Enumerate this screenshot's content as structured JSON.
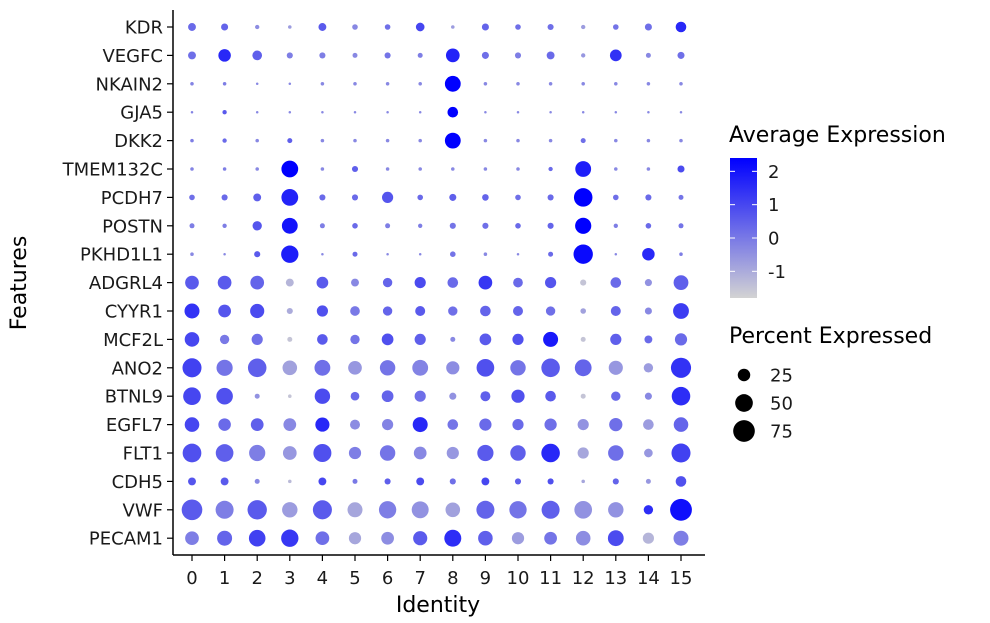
{
  "chart_data": {
    "type": "dotplot",
    "xlabel": "Identity",
    "ylabel": "Features",
    "categories": [
      "0",
      "1",
      "2",
      "3",
      "4",
      "5",
      "6",
      "7",
      "8",
      "9",
      "10",
      "11",
      "12",
      "13",
      "14",
      "15"
    ],
    "features": [
      "KDR",
      "VEGFC",
      "NKAIN2",
      "GJA5",
      "DKK2",
      "TMEM132C",
      "PCDH7",
      "POSTN",
      "PKHD1L1",
      "ADGRL4",
      "CYYR1",
      "MCF2L",
      "ANO2",
      "BTNL9",
      "EGFL7",
      "FLT1",
      "CDH5",
      "VWF",
      "PECAM1"
    ],
    "color_legend": {
      "title": "Average Expression",
      "ticks": [
        2,
        1,
        0,
        -1
      ],
      "range": [
        -1.8,
        2.4
      ],
      "low_color": "#d3d3d3",
      "high_color": "#0000ff"
    },
    "size_legend": {
      "title": "Percent Expressed",
      "values": [
        25,
        50,
        75
      ]
    },
    "average_expression": [
      [
        0.3,
        0.4,
        -0.4,
        -0.7,
        0.6,
        -0.3,
        0.2,
        1.0,
        -0.7,
        0.4,
        0.2,
        0.2,
        -0.7,
        0.1,
        0.2,
        1.6
      ],
      [
        0.2,
        1.6,
        0.5,
        -0.1,
        -0.1,
        -0.3,
        0.1,
        -0.1,
        1.7,
        0.2,
        -0.1,
        0.3,
        -0.6,
        1.4,
        -0.3,
        0.2
      ],
      [
        -0.2,
        -0.1,
        -0.3,
        -0.3,
        -0.3,
        -0.3,
        -0.3,
        -0.3,
        2.4,
        -0.3,
        -0.3,
        -0.3,
        -0.3,
        -0.3,
        -0.3,
        -0.3
      ],
      [
        -0.2,
        0.6,
        -0.3,
        -0.3,
        -0.3,
        -0.3,
        -0.3,
        -0.3,
        2.4,
        -0.3,
        -0.3,
        -0.3,
        -0.3,
        -0.3,
        -0.3,
        -0.3
      ],
      [
        -0.1,
        0.3,
        -0.3,
        0.5,
        -0.3,
        -0.3,
        -0.3,
        -0.3,
        2.4,
        -0.3,
        -0.3,
        -0.3,
        0.2,
        -0.3,
        -0.3,
        -0.3
      ],
      [
        -0.2,
        -0.1,
        -0.3,
        2.4,
        -0.3,
        0.5,
        -0.3,
        -0.3,
        -0.3,
        -0.3,
        -0.3,
        0.3,
        1.8,
        -0.3,
        -0.3,
        0.9
      ],
      [
        0.2,
        0.3,
        0.5,
        1.7,
        0.3,
        0.3,
        0.7,
        0.3,
        0.5,
        0.4,
        0.2,
        0.3,
        2.4,
        0.2,
        0.3,
        0.1
      ],
      [
        -0.1,
        -0.1,
        0.7,
        2.0,
        -0.1,
        0.3,
        -0.1,
        -0.1,
        0.1,
        0.2,
        0.3,
        0.4,
        2.4,
        -0.1,
        0.3,
        0.1
      ],
      [
        -0.3,
        -0.3,
        0.6,
        1.8,
        -0.3,
        0.3,
        -0.3,
        -0.3,
        0.1,
        -0.3,
        -0.3,
        0.3,
        2.2,
        -0.3,
        1.6,
        -0.1
      ],
      [
        0.6,
        0.6,
        0.4,
        -1.2,
        0.6,
        -0.3,
        0.4,
        0.9,
        0.3,
        1.3,
        0.3,
        0.7,
        -1.5,
        0.3,
        -0.5,
        0.5
      ],
      [
        1.4,
        0.7,
        0.9,
        -1.0,
        0.8,
        0.0,
        0.4,
        0.6,
        0.2,
        0.4,
        0.4,
        0.2,
        -0.8,
        0.4,
        -0.3,
        1.2
      ],
      [
        1.0,
        0.0,
        0.2,
        -1.5,
        0.6,
        0.1,
        0.8,
        0.5,
        -0.3,
        0.6,
        0.8,
        1.9,
        -1.5,
        0.5,
        0.3,
        0.3
      ],
      [
        1.1,
        0.1,
        0.5,
        -0.8,
        0.2,
        -0.6,
        0.1,
        -0.2,
        -0.4,
        0.8,
        0.1,
        0.6,
        0.4,
        -0.6,
        -0.7,
        1.4
      ],
      [
        1.0,
        0.8,
        -0.5,
        -1.5,
        0.9,
        0.3,
        0.4,
        0.2,
        -0.5,
        0.5,
        0.8,
        0.6,
        -1.5,
        0.3,
        -0.3,
        1.5
      ],
      [
        1.0,
        0.3,
        0.5,
        -0.3,
        1.6,
        -0.4,
        -0.2,
        1.6,
        0.1,
        0.3,
        0.3,
        0.2,
        -0.5,
        0.2,
        -0.7,
        0.4
      ],
      [
        0.8,
        0.5,
        -0.1,
        -0.6,
        0.8,
        -0.1,
        0.1,
        -0.3,
        -0.6,
        0.6,
        0.5,
        1.6,
        -0.9,
        0.2,
        -0.6,
        1.1
      ],
      [
        0.7,
        0.6,
        -0.3,
        -1.3,
        1.0,
        0.0,
        0.5,
        0.9,
        0.2,
        1.0,
        0.5,
        0.8,
        -0.9,
        0.4,
        -0.6,
        0.8
      ],
      [
        0.6,
        -0.1,
        0.6,
        -0.7,
        0.6,
        -0.9,
        -0.1,
        -0.5,
        -0.8,
        0.4,
        0.1,
        0.5,
        -0.5,
        -0.5,
        1.5,
        2.1
      ],
      [
        -0.1,
        0.4,
        1.1,
        1.3,
        0.2,
        -0.9,
        -0.4,
        0.6,
        1.5,
        0.5,
        -0.7,
        0.1,
        -0.4,
        0.9,
        -1.2,
        -0.1
      ]
    ],
    "percent_expressed": [
      [
        10,
        8,
        3,
        2,
        10,
        5,
        5,
        12,
        2,
        8,
        5,
        6,
        3,
        5,
        8,
        18
      ],
      [
        10,
        25,
        15,
        6,
        6,
        4,
        6,
        4,
        30,
        8,
        6,
        10,
        3,
        22,
        4,
        8
      ],
      [
        2,
        2,
        1,
        1,
        2,
        2,
        2,
        2,
        40,
        2,
        2,
        2,
        2,
        2,
        2,
        2
      ],
      [
        1,
        3,
        1,
        1,
        1,
        1,
        1,
        1,
        18,
        1,
        1,
        1,
        1,
        1,
        1,
        1
      ],
      [
        2,
        3,
        2,
        4,
        2,
        2,
        2,
        2,
        40,
        2,
        2,
        2,
        4,
        2,
        2,
        2
      ],
      [
        2,
        2,
        2,
        45,
        2,
        6,
        2,
        2,
        2,
        2,
        2,
        3,
        40,
        2,
        2,
        8
      ],
      [
        5,
        6,
        10,
        45,
        6,
        6,
        20,
        5,
        8,
        7,
        5,
        6,
        55,
        5,
        6,
        4
      ],
      [
        4,
        3,
        14,
        40,
        4,
        5,
        4,
        3,
        6,
        6,
        5,
        6,
        42,
        3,
        5,
        4
      ],
      [
        2,
        1,
        6,
        48,
        1,
        4,
        1,
        1,
        5,
        2,
        1,
        4,
        60,
        1,
        25,
        2
      ],
      [
        30,
        30,
        30,
        10,
        22,
        10,
        14,
        20,
        18,
        30,
        15,
        20,
        6,
        18,
        8,
        35
      ],
      [
        36,
        26,
        32,
        6,
        20,
        15,
        14,
        16,
        14,
        18,
        16,
        14,
        5,
        16,
        8,
        40
      ],
      [
        34,
        14,
        20,
        4,
        18,
        14,
        22,
        20,
        4,
        22,
        20,
        36,
        4,
        20,
        10,
        24
      ],
      [
        58,
        42,
        55,
        34,
        40,
        30,
        38,
        40,
        28,
        50,
        38,
        55,
        45,
        32,
        14,
        65
      ],
      [
        50,
        44,
        4,
        2,
        38,
        12,
        22,
        20,
        8,
        16,
        28,
        18,
        4,
        14,
        8,
        55
      ],
      [
        34,
        25,
        26,
        26,
        32,
        16,
        20,
        36,
        18,
        24,
        20,
        24,
        20,
        28,
        18,
        34
      ],
      [
        56,
        50,
        42,
        30,
        52,
        24,
        38,
        26,
        24,
        42,
        38,
        55,
        20,
        38,
        12,
        58
      ],
      [
        10,
        10,
        4,
        2,
        10,
        4,
        6,
        10,
        6,
        10,
        6,
        6,
        2,
        6,
        4,
        18
      ],
      [
        68,
        52,
        60,
        38,
        58,
        36,
        48,
        46,
        34,
        52,
        48,
        52,
        50,
        38,
        14,
        76
      ],
      [
        30,
        36,
        44,
        48,
        30,
        24,
        26,
        32,
        46,
        34,
        24,
        26,
        34,
        40,
        20,
        36
      ]
    ]
  }
}
